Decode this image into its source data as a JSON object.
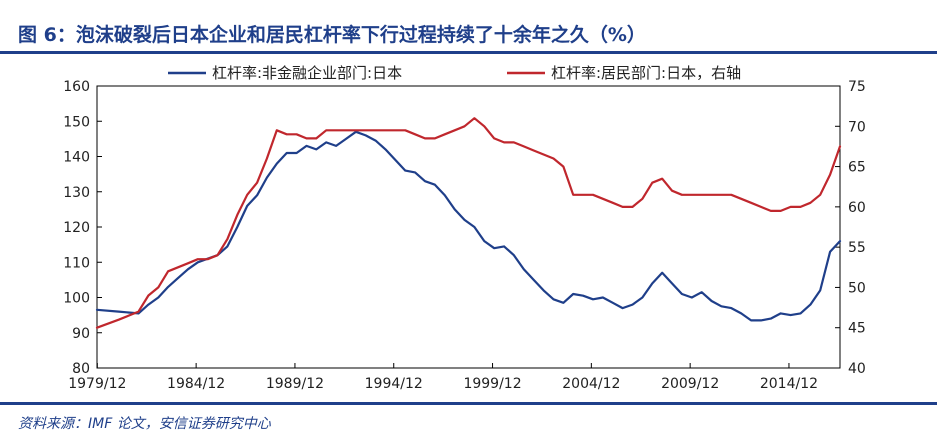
{
  "title": "图 6：泡沫破裂后日本企业和居民杠杆率下行过程持续了十余年之久（%）",
  "source": "资料来源：IMF 论文，安信证券研究中心",
  "colors": {
    "accent": "#1f3f8a",
    "series_blue": "#1f3f8a",
    "series_red": "#c0272d"
  },
  "chart_data": {
    "type": "line",
    "title": "",
    "xlabel": "",
    "ylabel": "",
    "x_tick_labels": [
      "1979/12",
      "1984/12",
      "1989/12",
      "1994/12",
      "1999/12",
      "2004/12",
      "2009/12",
      "2014/12"
    ],
    "x_range": [
      1979.9,
      2017.5
    ],
    "y_left": {
      "ticks": [
        80,
        90,
        100,
        110,
        120,
        130,
        140,
        150,
        160
      ],
      "range": [
        80,
        160
      ]
    },
    "y_right": {
      "ticks": [
        40,
        45,
        50,
        55,
        60,
        65,
        70,
        75
      ],
      "range": [
        40,
        75
      ]
    },
    "grid": false,
    "legend": "top",
    "series": [
      {
        "name": "杠杆率:非金融企业部门:日本",
        "color": "#1f3f8a",
        "axis": "left",
        "x": [
          1979.9,
          1981.0,
          1982.0,
          1982.5,
          1983.0,
          1983.5,
          1984.0,
          1984.5,
          1985.0,
          1985.5,
          1986.0,
          1986.5,
          1987.0,
          1987.5,
          1988.0,
          1988.5,
          1989.0,
          1989.5,
          1990.0,
          1990.5,
          1991.0,
          1991.5,
          1992.0,
          1992.5,
          1993.0,
          1993.5,
          1994.0,
          1994.5,
          1995.0,
          1995.5,
          1996.0,
          1996.5,
          1997.0,
          1997.5,
          1998.0,
          1998.5,
          1999.0,
          1999.5,
          2000.0,
          2000.5,
          2001.0,
          2001.5,
          2002.0,
          2002.5,
          2003.0,
          2003.5,
          2004.0,
          2004.5,
          2005.0,
          2005.5,
          2006.0,
          2006.5,
          2007.0,
          2007.5,
          2008.0,
          2008.5,
          2009.0,
          2009.5,
          2010.0,
          2010.5,
          2011.0,
          2011.5,
          2012.0,
          2012.5,
          2013.0,
          2013.5,
          2014.0,
          2014.5,
          2015.0,
          2015.5,
          2016.0,
          2016.5,
          2017.0,
          2017.5
        ],
        "y": [
          96.5,
          96.0,
          95.5,
          98.0,
          100.0,
          103.0,
          105.5,
          108.0,
          110.0,
          111.0,
          112.0,
          114.5,
          120.0,
          126.0,
          129.0,
          134.0,
          138.0,
          141.0,
          141.0,
          143.0,
          142.0,
          144.0,
          143.0,
          145.0,
          147.0,
          146.0,
          144.5,
          142.0,
          139.0,
          136.0,
          135.5,
          133.0,
          132.0,
          129.0,
          125.0,
          122.0,
          120.0,
          116.0,
          114.0,
          114.5,
          112.0,
          108.0,
          105.0,
          102.0,
          99.5,
          98.5,
          101.0,
          100.5,
          99.5,
          100.0,
          98.5,
          97.0,
          98.0,
          100.0,
          104.0,
          107.0,
          104.0,
          101.0,
          100.0,
          101.5,
          99.0,
          97.5,
          97.0,
          95.5,
          93.5,
          93.5,
          94.0,
          95.5,
          95.0,
          95.5,
          98.0,
          102.0,
          113.0,
          116.0
        ]
      },
      {
        "name": "杠杆率:居民部门:日本，右轴",
        "color": "#c0272d",
        "axis": "right",
        "x": [
          1979.9,
          1981.0,
          1982.0,
          1982.5,
          1983.0,
          1983.5,
          1984.0,
          1984.5,
          1985.0,
          1985.5,
          1986.0,
          1986.5,
          1987.0,
          1987.5,
          1988.0,
          1988.5,
          1989.0,
          1989.5,
          1990.0,
          1990.5,
          1991.0,
          1991.5,
          1992.0,
          1992.5,
          1993.0,
          1993.5,
          1994.0,
          1994.5,
          1995.0,
          1995.5,
          1996.0,
          1996.5,
          1997.0,
          1997.5,
          1998.0,
          1998.5,
          1999.0,
          1999.5,
          2000.0,
          2000.5,
          2001.0,
          2001.5,
          2002.0,
          2002.5,
          2003.0,
          2003.5,
          2004.0,
          2004.5,
          2005.0,
          2005.5,
          2006.0,
          2006.5,
          2007.0,
          2007.5,
          2008.0,
          2008.5,
          2009.0,
          2009.5,
          2010.0,
          2010.5,
          2011.0,
          2011.5,
          2012.0,
          2012.5,
          2013.0,
          2013.5,
          2014.0,
          2014.5,
          2015.0,
          2015.5,
          2016.0,
          2016.5,
          2017.0,
          2017.5
        ],
        "y": [
          45.0,
          46.0,
          47.0,
          49.0,
          50.0,
          52.0,
          52.5,
          53.0,
          53.5,
          53.5,
          54.0,
          56.0,
          59.0,
          61.5,
          63.0,
          66.0,
          69.5,
          69.0,
          69.0,
          68.5,
          68.5,
          69.5,
          69.5,
          69.5,
          69.5,
          69.5,
          69.5,
          69.5,
          69.5,
          69.5,
          69.0,
          68.5,
          68.5,
          69.0,
          69.5,
          70.0,
          71.0,
          70.0,
          68.5,
          68.0,
          68.0,
          67.5,
          67.0,
          66.5,
          66.0,
          65.0,
          61.5,
          61.5,
          61.5,
          61.0,
          60.5,
          60.0,
          60.0,
          61.0,
          63.0,
          63.5,
          62.0,
          61.5,
          61.5,
          61.5,
          61.5,
          61.5,
          61.5,
          61.0,
          60.5,
          60.0,
          59.5,
          59.5,
          60.0,
          60.0,
          60.5,
          61.5,
          64.0,
          67.5
        ]
      }
    ]
  }
}
